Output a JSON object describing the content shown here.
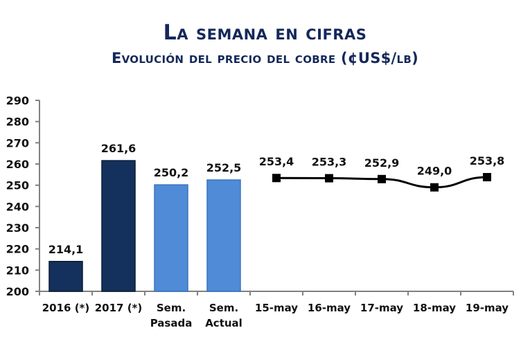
{
  "chart_data": {
    "type": "bar+line",
    "title": "La semana en cifras",
    "subtitle": "Evolución del precio del cobre  (¢US$/lb)",
    "xlabel": "",
    "ylabel": "",
    "ylim": [
      200,
      290
    ],
    "yticks": [
      "200",
      "210",
      "220",
      "230",
      "240",
      "250",
      "260",
      "270",
      "280",
      "290"
    ],
    "grid": false,
    "bars": [
      {
        "category": [
          "2016 (*)"
        ],
        "value": 214.1,
        "label": "214,1",
        "color": "#14305c"
      },
      {
        "category": [
          "2017 (*)"
        ],
        "value": 261.6,
        "label": "261,6",
        "color": "#14305c"
      },
      {
        "category": [
          "Sem.",
          "Pasada"
        ],
        "value": 250.2,
        "label": "250,2",
        "color": "#4f8bd6"
      },
      {
        "category": [
          "Sem.",
          "Actual"
        ],
        "value": 252.5,
        "label": "252,5",
        "color": "#4f8bd6"
      }
    ],
    "line": {
      "color": "#000000",
      "points": [
        {
          "category": "15-may",
          "value": 253.4,
          "label": "253,4"
        },
        {
          "category": "16-may",
          "value": 253.3,
          "label": "253,3"
        },
        {
          "category": "17-may",
          "value": 252.9,
          "label": "252,9"
        },
        {
          "category": "18-may",
          "value": 249.0,
          "label": "249,0"
        },
        {
          "category": "19-may",
          "value": 253.8,
          "label": "253,8"
        }
      ]
    }
  }
}
